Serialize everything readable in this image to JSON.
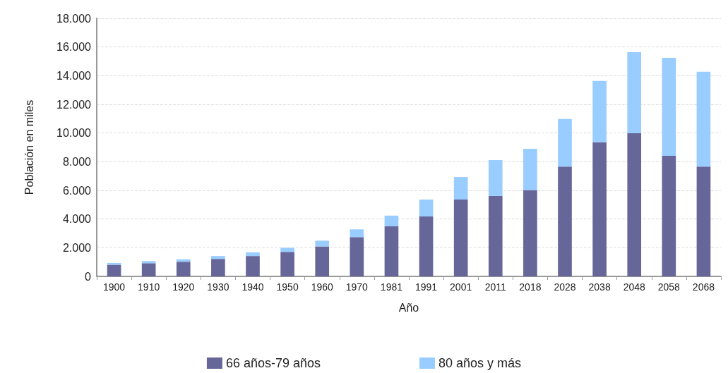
{
  "chart_data": {
    "type": "bar",
    "stacked": true,
    "xlabel": "Año",
    "ylabel": "Población en miles",
    "categories": [
      "1900",
      "1910",
      "1920",
      "1930",
      "1940",
      "1950",
      "1960",
      "1970",
      "1981",
      "1991",
      "2001",
      "2011",
      "2018",
      "2028",
      "2038",
      "2048",
      "2058",
      "2068"
    ],
    "series": [
      {
        "name": "66 años-79 años",
        "color": "#666699",
        "values": [
          810,
          920,
          1020,
          1220,
          1420,
          1710,
          2090,
          2740,
          3490,
          4180,
          5360,
          5620,
          6020,
          7660,
          9360,
          9980,
          8410,
          7660
        ]
      },
      {
        "name": "80 años y más",
        "color": "#99ccff",
        "values": [
          130,
          150,
          170,
          200,
          260,
          290,
          400,
          540,
          750,
          1180,
          1570,
          2490,
          2880,
          3320,
          4280,
          5660,
          6840,
          6620
        ]
      }
    ],
    "ylim": [
      0,
      18000
    ],
    "yticks": [
      0,
      {
        "value": 2000,
        "label": "2.000"
      },
      {
        "value": 4000,
        "label": "4.000"
      },
      {
        "value": 6000,
        "label": "6.000"
      },
      {
        "value": 8000,
        "label": "8.000"
      },
      {
        "value": 10000,
        "label": "10.000"
      },
      {
        "value": 12000,
        "label": "12.000"
      },
      {
        "value": 14000,
        "label": "14.000"
      },
      {
        "value": 16000,
        "label": "16.000"
      },
      {
        "value": 18000,
        "label": "18.000"
      }
    ],
    "grid": "y",
    "legend": "bottom"
  }
}
